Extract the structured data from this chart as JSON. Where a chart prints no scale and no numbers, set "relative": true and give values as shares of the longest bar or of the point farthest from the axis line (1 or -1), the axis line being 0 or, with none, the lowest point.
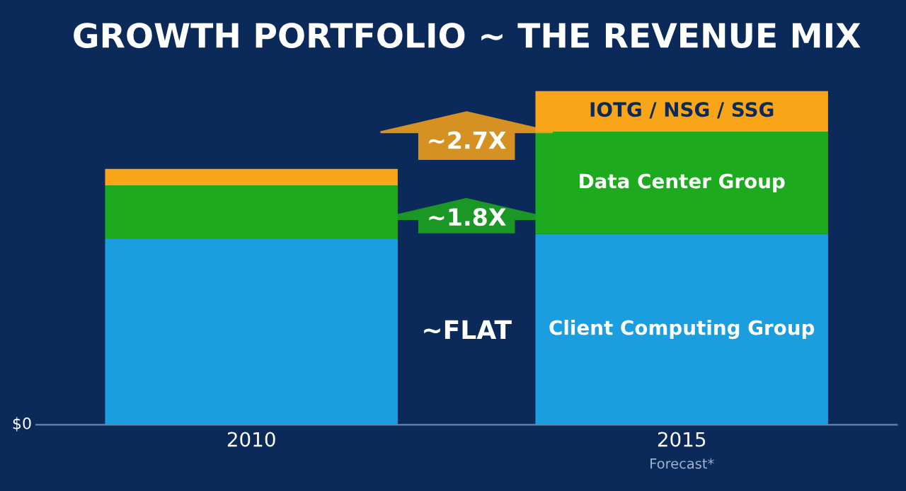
{
  "chart_data": {
    "type": "bar",
    "title": "GROWTH PORTFOLIO ~ THE REVENUE MIX",
    "categories": [
      "2010",
      "2015"
    ],
    "stacked": true,
    "relative": true,
    "series": [
      {
        "name": "Client Computing Group",
        "color": "#1a9ee0",
        "values": [
          0.556,
          0.571
        ]
      },
      {
        "name": "Data Center Group",
        "color": "#1eaa1e",
        "values": [
          0.161,
          0.307
        ]
      },
      {
        "name": "IOTG / NSG / SSG",
        "color": "#f9a51a",
        "values": [
          0.049,
          0.122
        ]
      }
    ],
    "annotations": [
      "$0",
      "Forecast*",
      "~FLAT",
      "~1.8X",
      "~2.7X"
    ]
  }
}
